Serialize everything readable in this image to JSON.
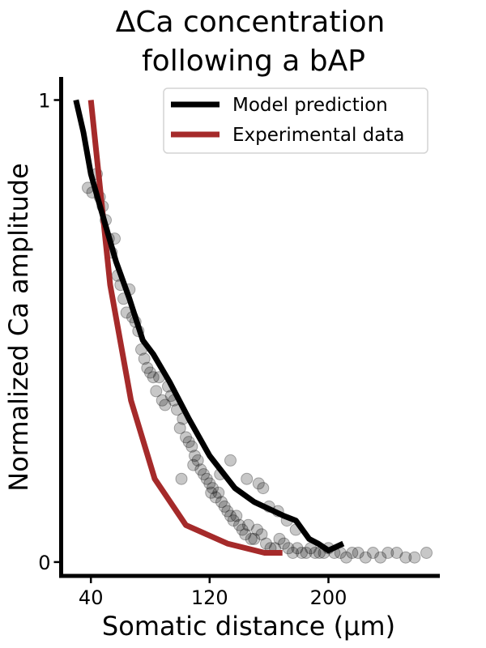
{
  "chart_data": {
    "type": "line",
    "title": [
      "ΔCa concentration",
      "following a bAP"
    ],
    "xlabel": "Somatic distance (µm)",
    "ylabel": "Normalized Ca amplitude",
    "xlim": [
      20,
      275
    ],
    "ylim": [
      -0.03,
      1.05
    ],
    "xticks": [
      40,
      120,
      200
    ],
    "yticks": [
      0,
      1
    ],
    "xtick_labels": [
      "40",
      "120",
      "200"
    ],
    "ytick_labels": [
      "0",
      "1"
    ],
    "grid": false,
    "legend_position": "top-right",
    "colors": {
      "model": "#000000",
      "experimental": "#a52a2a",
      "scatter": "#000000"
    },
    "series": [
      {
        "name": "Model prediction",
        "kind": "line",
        "x": [
          30,
          35,
          40,
          48,
          57,
          66,
          75,
          82,
          93,
          106,
          120,
          137,
          150,
          170,
          178,
          187,
          193,
          200,
          210
        ],
        "y": [
          1.0,
          0.93,
          0.84,
          0.75,
          0.65,
          0.57,
          0.48,
          0.45,
          0.39,
          0.31,
          0.23,
          0.16,
          0.13,
          0.1,
          0.09,
          0.05,
          0.04,
          0.025,
          0.04
        ]
      },
      {
        "name": "Experimental data",
        "kind": "line",
        "x": [
          40,
          53,
          67,
          83,
          104,
          132,
          157,
          169
        ],
        "y": [
          1.0,
          0.6,
          0.35,
          0.18,
          0.08,
          0.04,
          0.02,
          0.02
        ]
      },
      {
        "kind": "scatter",
        "x": [
          38,
          41,
          44,
          46,
          48,
          50,
          52,
          54,
          56,
          58,
          60,
          62,
          64,
          66,
          68,
          70,
          72,
          74,
          76,
          78,
          80,
          82,
          84,
          86,
          88,
          90,
          92,
          94,
          96,
          98,
          100,
          102,
          104,
          106,
          108,
          110,
          112,
          114,
          116,
          118,
          120,
          122,
          124,
          126,
          128,
          130,
          132,
          134,
          136,
          138,
          140,
          142,
          144,
          146,
          148,
          150,
          152,
          155,
          158,
          161,
          164,
          167,
          170,
          173,
          176,
          179,
          182,
          185,
          188,
          191,
          194,
          197,
          200,
          204,
          208,
          212,
          216,
          220,
          225,
          230,
          235,
          240,
          246,
          252,
          258,
          266,
          101,
          109,
          121,
          127,
          134,
          145,
          153,
          156,
          160,
          166,
          172,
          178
        ],
        "y": [
          0.81,
          0.8,
          0.84,
          0.79,
          0.77,
          0.74,
          0.7,
          0.67,
          0.7,
          0.62,
          0.6,
          0.57,
          0.54,
          0.59,
          0.53,
          0.52,
          0.5,
          0.46,
          0.44,
          0.42,
          0.41,
          0.4,
          0.37,
          0.4,
          0.35,
          0.34,
          0.38,
          0.36,
          0.35,
          0.33,
          0.29,
          0.31,
          0.27,
          0.26,
          0.25,
          0.23,
          0.22,
          0.2,
          0.19,
          0.18,
          0.17,
          0.16,
          0.14,
          0.15,
          0.13,
          0.12,
          0.11,
          0.1,
          0.09,
          0.1,
          0.08,
          0.07,
          0.06,
          0.08,
          0.05,
          0.05,
          0.07,
          0.06,
          0.04,
          0.03,
          0.03,
          0.05,
          0.04,
          0.03,
          0.02,
          0.03,
          0.02,
          0.02,
          0.03,
          0.02,
          0.02,
          0.02,
          0.03,
          0.02,
          0.02,
          0.01,
          0.02,
          0.02,
          0.01,
          0.02,
          0.01,
          0.02,
          0.02,
          0.01,
          0.01,
          0.02,
          0.18,
          0.21,
          0.15,
          0.19,
          0.22,
          0.18,
          0.17,
          0.16,
          0.12,
          0.11,
          0.09,
          0.07
        ]
      }
    ]
  }
}
